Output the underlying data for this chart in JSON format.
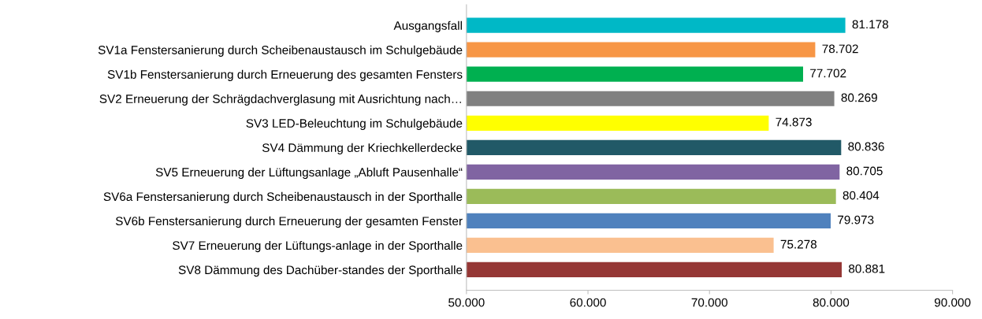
{
  "chart_data": {
    "type": "bar",
    "orientation": "horizontal",
    "categories": [
      "Ausgangsfall",
      "SV1a Fenstersanierung durch Scheibenaustausch im Schulgebäude",
      "SV1b Fenstersanierung durch Erneuerung des gesamten Fensters",
      "SV2 Erneuerung der Schrägdachverglasung mit Ausrichtung nach…",
      "SV3 LED-Beleuchtung im Schulgebäude",
      "SV4 Dämmung der Kriechkellerdecke",
      "SV5 Erneuerung der Lüftungsanlage „Abluft Pausenhalle“",
      "SV6a Fenstersanierung durch Scheibenaustausch in der Sporthalle",
      "SV6b Fenstersanierung durch Erneuerung der gesamten Fenster",
      "SV7 Erneuerung der Lüftungs-anlage in der Sporthalle",
      "SV8 Dämmung des Dachüber-standes der Sporthalle"
    ],
    "values": [
      81178,
      78702,
      77702,
      80269,
      74873,
      80836,
      80705,
      80404,
      79973,
      75278,
      80881
    ],
    "value_labels": [
      "81.178",
      "78.702",
      "77.702",
      "80.269",
      "74.873",
      "80.836",
      "80.705",
      "80.404",
      "79.973",
      "75.278",
      "80.881"
    ],
    "colors": [
      "#00b8c6",
      "#f79646",
      "#00b050",
      "#808080",
      "#ffff00",
      "#215967",
      "#8064a2",
      "#9bbb59",
      "#4f81bd",
      "#fac090",
      "#953735"
    ],
    "xlim": [
      50000,
      90000
    ],
    "xticks": [
      {
        "value": 50000,
        "label": "50.000"
      },
      {
        "value": 60000,
        "label": "60.000"
      },
      {
        "value": 70000,
        "label": "70.000"
      },
      {
        "value": 80000,
        "label": "80.000"
      },
      {
        "value": 90000,
        "label": "90.000"
      }
    ],
    "grid": false,
    "legend": false
  }
}
